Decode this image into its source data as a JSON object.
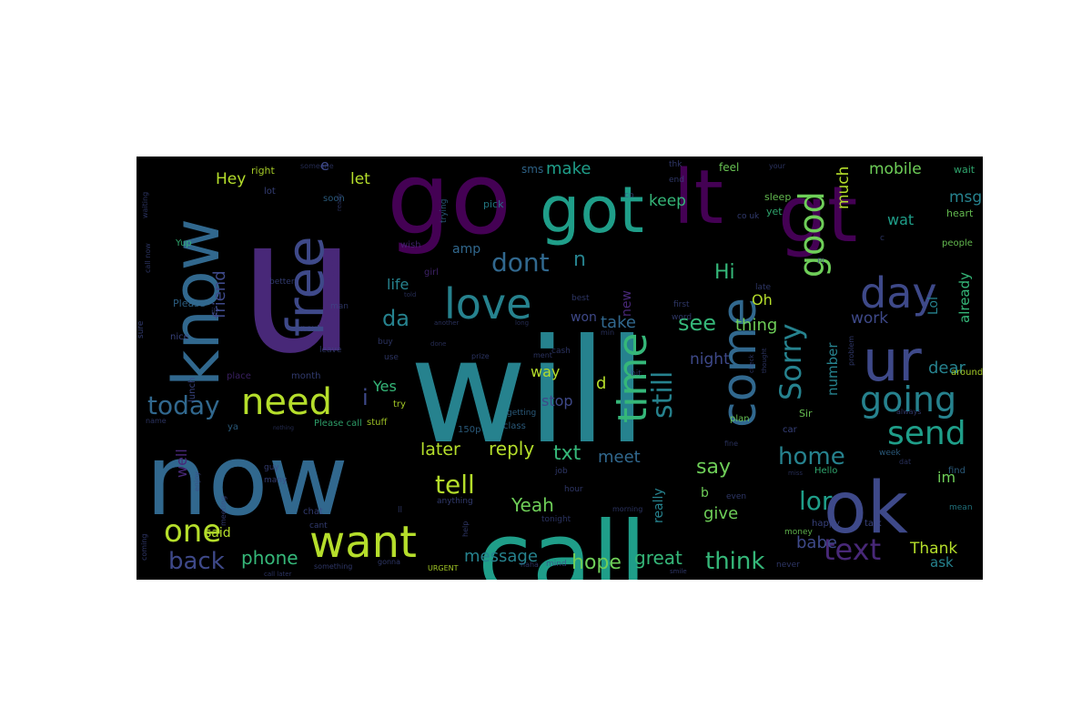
{
  "word_cloud": {
    "background": "#000000",
    "palette": [
      "#440154",
      "#482878",
      "#3e4989",
      "#31688e",
      "#26828e",
      "#1f9e89",
      "#35b779",
      "#6ece58",
      "#b5de2b",
      "#fde725"
    ],
    "words": [
      {
        "text": "u",
        "color": "#482878"
      },
      {
        "text": "will",
        "color": "#26828e"
      },
      {
        "text": "go",
        "color": "#440154"
      },
      {
        "text": "now",
        "color": "#31688e"
      },
      {
        "text": "call",
        "color": "#1f9e89"
      },
      {
        "text": "got",
        "color": "#1f9e89"
      },
      {
        "text": "lt",
        "color": "#440154"
      },
      {
        "text": "gt",
        "color": "#440154"
      },
      {
        "text": "ok",
        "color": "#3e4989"
      },
      {
        "text": "know",
        "color": "#31688e"
      },
      {
        "text": "free",
        "color": "#3e4989"
      },
      {
        "text": "love",
        "color": "#26828e"
      },
      {
        "text": "time",
        "color": "#35b779"
      },
      {
        "text": "come",
        "color": "#31688e"
      },
      {
        "text": "day",
        "color": "#3e4989"
      },
      {
        "text": "ur",
        "color": "#3e4989"
      },
      {
        "text": "want",
        "color": "#b5de2b"
      },
      {
        "text": "need",
        "color": "#b5de2b"
      },
      {
        "text": "one",
        "color": "#b5de2b"
      },
      {
        "text": "going",
        "color": "#26828e"
      },
      {
        "text": "send",
        "color": "#1f9e89"
      },
      {
        "text": "text",
        "color": "#482878"
      },
      {
        "text": "good",
        "color": "#6ece58"
      },
      {
        "text": "Sorry",
        "color": "#26828e"
      },
      {
        "text": "still",
        "color": "#26828e"
      },
      {
        "text": "today",
        "color": "#31688e"
      },
      {
        "text": "back",
        "color": "#3e4989"
      },
      {
        "text": "tell",
        "color": "#b5de2b"
      },
      {
        "text": "dont",
        "color": "#31688e"
      },
      {
        "text": "home",
        "color": "#26828e"
      },
      {
        "text": "think",
        "color": "#35b779"
      },
      {
        "text": "lor",
        "color": "#1f9e89"
      },
      {
        "text": "see",
        "color": "#35b779"
      },
      {
        "text": "say",
        "color": "#6ece58"
      },
      {
        "text": "da",
        "color": "#26828e"
      },
      {
        "text": "Hi",
        "color": "#35b779"
      },
      {
        "text": "phone",
        "color": "#35b779"
      },
      {
        "text": "message",
        "color": "#26828e"
      },
      {
        "text": "hope",
        "color": "#6ece58"
      },
      {
        "text": "great",
        "color": "#35b779"
      },
      {
        "text": "reply",
        "color": "#b5de2b"
      },
      {
        "text": "txt",
        "color": "#35b779"
      },
      {
        "text": "Thank",
        "color": "#b5de2b"
      },
      {
        "text": "Yeah",
        "color": "#6ece58"
      },
      {
        "text": "later",
        "color": "#b5de2b"
      },
      {
        "text": "meet",
        "color": "#31688e"
      },
      {
        "text": "give",
        "color": "#6ece58"
      },
      {
        "text": "babe",
        "color": "#3e4989"
      },
      {
        "text": "friend",
        "color": "#3e4989"
      },
      {
        "text": "tomorrow",
        "color": "#482878"
      },
      {
        "text": "mobile",
        "color": "#6ece58"
      },
      {
        "text": "make",
        "color": "#1f9e89"
      },
      {
        "text": "keep",
        "color": "#35b779"
      },
      {
        "text": "thing",
        "color": "#6ece58"
      },
      {
        "text": "take",
        "color": "#31688e"
      },
      {
        "text": "night",
        "color": "#3e4989"
      },
      {
        "text": "much",
        "color": "#b5de2b"
      },
      {
        "text": "work",
        "color": "#3e4989"
      },
      {
        "text": "already",
        "color": "#35b779"
      },
      {
        "text": "dear",
        "color": "#26828e"
      },
      {
        "text": "wat",
        "color": "#1f9e89"
      },
      {
        "text": "msg",
        "color": "#26828e"
      },
      {
        "text": "Hey",
        "color": "#b5de2b"
      },
      {
        "text": "let",
        "color": "#b5de2b"
      },
      {
        "text": "e",
        "color": "#3e4989"
      },
      {
        "text": "amp",
        "color": "#31688e"
      },
      {
        "text": "n",
        "color": "#26828e"
      },
      {
        "text": "Oh",
        "color": "#b5de2b"
      },
      {
        "text": "life",
        "color": "#26828e"
      },
      {
        "text": "new",
        "color": "#482878"
      },
      {
        "text": "won",
        "color": "#3e4989"
      },
      {
        "text": "Lol",
        "color": "#26828e"
      },
      {
        "text": "way",
        "color": "#b5de2b"
      },
      {
        "text": "d",
        "color": "#b5de2b"
      },
      {
        "text": "stop",
        "color": "#3e4989"
      },
      {
        "text": "Yes",
        "color": "#35b779"
      },
      {
        "text": "i",
        "color": "#3e4989"
      },
      {
        "text": "number",
        "color": "#26828e"
      },
      {
        "text": "im",
        "color": "#6ece58"
      },
      {
        "text": "said",
        "color": "#b5de2b"
      },
      {
        "text": "well",
        "color": "#482878"
      },
      {
        "text": "ask",
        "color": "#26828e"
      },
      {
        "text": "b",
        "color": "#6ece58"
      },
      {
        "text": "really",
        "color": "#26828e"
      },
      {
        "text": "sms",
        "color": "#31688e"
      },
      {
        "text": "Please",
        "color": "#31688e"
      },
      {
        "text": "nice",
        "color": "#3e4989"
      },
      {
        "text": "lunch",
        "color": "#3e4989"
      },
      {
        "text": "Yup",
        "color": "#35b779"
      },
      {
        "text": "happy",
        "color": "#3e4989"
      },
      {
        "text": "talk",
        "color": "#3e4989"
      },
      {
        "text": "feel",
        "color": "#6ece58"
      },
      {
        "text": "wait",
        "color": "#35b779"
      },
      {
        "text": "people",
        "color": "#6ece58"
      },
      {
        "text": "heart",
        "color": "#6ece58"
      },
      {
        "text": "around",
        "color": "#b5de2b"
      },
      {
        "text": "Sir",
        "color": "#6ece58"
      },
      {
        "text": "car",
        "color": "#3e4989"
      },
      {
        "text": "plan",
        "color": "#6ece58"
      },
      {
        "text": "Hello",
        "color": "#35b779"
      },
      {
        "text": "money",
        "color": "#6ece58"
      },
      {
        "text": "mean",
        "color": "#26828e"
      },
      {
        "text": "find",
        "color": "#31688e"
      },
      {
        "text": "week",
        "color": "#31688e"
      },
      {
        "text": "sleep",
        "color": "#6ece58"
      },
      {
        "text": "yet",
        "color": "#35b779"
      },
      {
        "text": "right",
        "color": "#b5de2b"
      },
      {
        "text": "soon",
        "color": "#31688e"
      },
      {
        "text": "lot",
        "color": "#3e4989"
      },
      {
        "text": "pick",
        "color": "#26828e"
      },
      {
        "text": "trying",
        "color": "#31688e"
      },
      {
        "text": "wish",
        "color": "#482878"
      },
      {
        "text": "girl",
        "color": "#482878"
      },
      {
        "text": "class",
        "color": "#31688e"
      },
      {
        "text": "getting",
        "color": "#31688e"
      },
      {
        "text": "150p",
        "color": "#31688e"
      },
      {
        "text": "Please call",
        "color": "#35b779"
      },
      {
        "text": "stuff",
        "color": "#b5de2b"
      },
      {
        "text": "try",
        "color": "#b5de2b"
      },
      {
        "text": "ya",
        "color": "#31688e"
      },
      {
        "text": "place",
        "color": "#482878"
      },
      {
        "text": "month",
        "color": "#3e4989"
      },
      {
        "text": "next",
        "color": "#3e4989"
      },
      {
        "text": "better",
        "color": "#3e4989"
      },
      {
        "text": "sure",
        "color": "#3e4989"
      },
      {
        "text": "coming",
        "color": "#3e4989"
      },
      {
        "text": "meeting",
        "color": "#3e4989"
      },
      {
        "text": "guy",
        "color": "#3e4989"
      },
      {
        "text": "many",
        "color": "#3e4989"
      },
      {
        "text": "chat",
        "color": "#3e4989"
      },
      {
        "text": "cant",
        "color": "#3e4989"
      },
      {
        "text": "anything",
        "color": "#3e4989"
      },
      {
        "text": "help",
        "color": "#3e4989"
      },
      {
        "text": "something",
        "color": "#3e4989"
      },
      {
        "text": "gonna",
        "color": "#3e4989"
      },
      {
        "text": "URGENT",
        "color": "#b5de2b"
      },
      {
        "text": "mind",
        "color": "#3e4989"
      },
      {
        "text": "smile",
        "color": "#3e4989"
      },
      {
        "text": "never",
        "color": "#3e4989"
      },
      {
        "text": "hour",
        "color": "#3e4989"
      },
      {
        "text": "job",
        "color": "#3e4989"
      },
      {
        "text": "tonight",
        "color": "#3e4989"
      },
      {
        "text": "even",
        "color": "#3e4989"
      },
      {
        "text": "morning",
        "color": "#3e4989"
      },
      {
        "text": "best",
        "color": "#3e4989"
      },
      {
        "text": "first",
        "color": "#3e4989"
      },
      {
        "text": "word",
        "color": "#3e4989"
      },
      {
        "text": "late",
        "color": "#3e4989"
      },
      {
        "text": "problem",
        "color": "#3e4989"
      },
      {
        "text": "always",
        "color": "#3e4989"
      },
      {
        "text": "end",
        "color": "#3e4989"
      },
      {
        "text": "thk",
        "color": "#3e4989"
      },
      {
        "text": "co uk",
        "color": "#3e4989"
      },
      {
        "text": "your",
        "color": "#3e4989"
      },
      {
        "text": "waiting",
        "color": "#3e4989"
      },
      {
        "text": "call now",
        "color": "#3e4989"
      },
      {
        "text": "ill",
        "color": "#3e4989"
      },
      {
        "text": "man",
        "color": "#3e4989"
      },
      {
        "text": "buy",
        "color": "#3e4989"
      },
      {
        "text": "use",
        "color": "#3e4989"
      },
      {
        "text": "leave",
        "color": "#3e4989"
      },
      {
        "text": "enjoy",
        "color": "#3e4989"
      },
      {
        "text": "name",
        "color": "#3e4989"
      },
      {
        "text": "call later",
        "color": "#3e4989"
      },
      {
        "text": "ready",
        "color": "#3e4989"
      },
      {
        "text": "someone",
        "color": "#3e4989"
      },
      {
        "text": "co",
        "color": "#3e4989"
      },
      {
        "text": "PI",
        "color": "#3e4989"
      },
      {
        "text": "bit",
        "color": "#3e4989"
      },
      {
        "text": "check",
        "color": "#3e4989"
      },
      {
        "text": "thought",
        "color": "#3e4989"
      },
      {
        "text": "ment",
        "color": "#3e4989"
      },
      {
        "text": "cash",
        "color": "#3e4989"
      },
      {
        "text": "prize",
        "color": "#3e4989"
      },
      {
        "text": "another",
        "color": "#3e4989"
      },
      {
        "text": "long",
        "color": "#3e4989"
      },
      {
        "text": "min",
        "color": "#3e4989"
      },
      {
        "text": "fine",
        "color": "#3e4989"
      },
      {
        "text": "miss",
        "color": "#3e4989"
      },
      {
        "text": "dat",
        "color": "#3e4989"
      },
      {
        "text": "told",
        "color": "#3e4989"
      },
      {
        "text": "done",
        "color": "#3e4989"
      },
      {
        "text": "nothing",
        "color": "#3e4989"
      },
      {
        "text": "ll",
        "color": "#3e4989"
      },
      {
        "text": "haha",
        "color": "#3e4989"
      },
      {
        "text": "c",
        "color": "#3e4989"
      }
    ]
  }
}
